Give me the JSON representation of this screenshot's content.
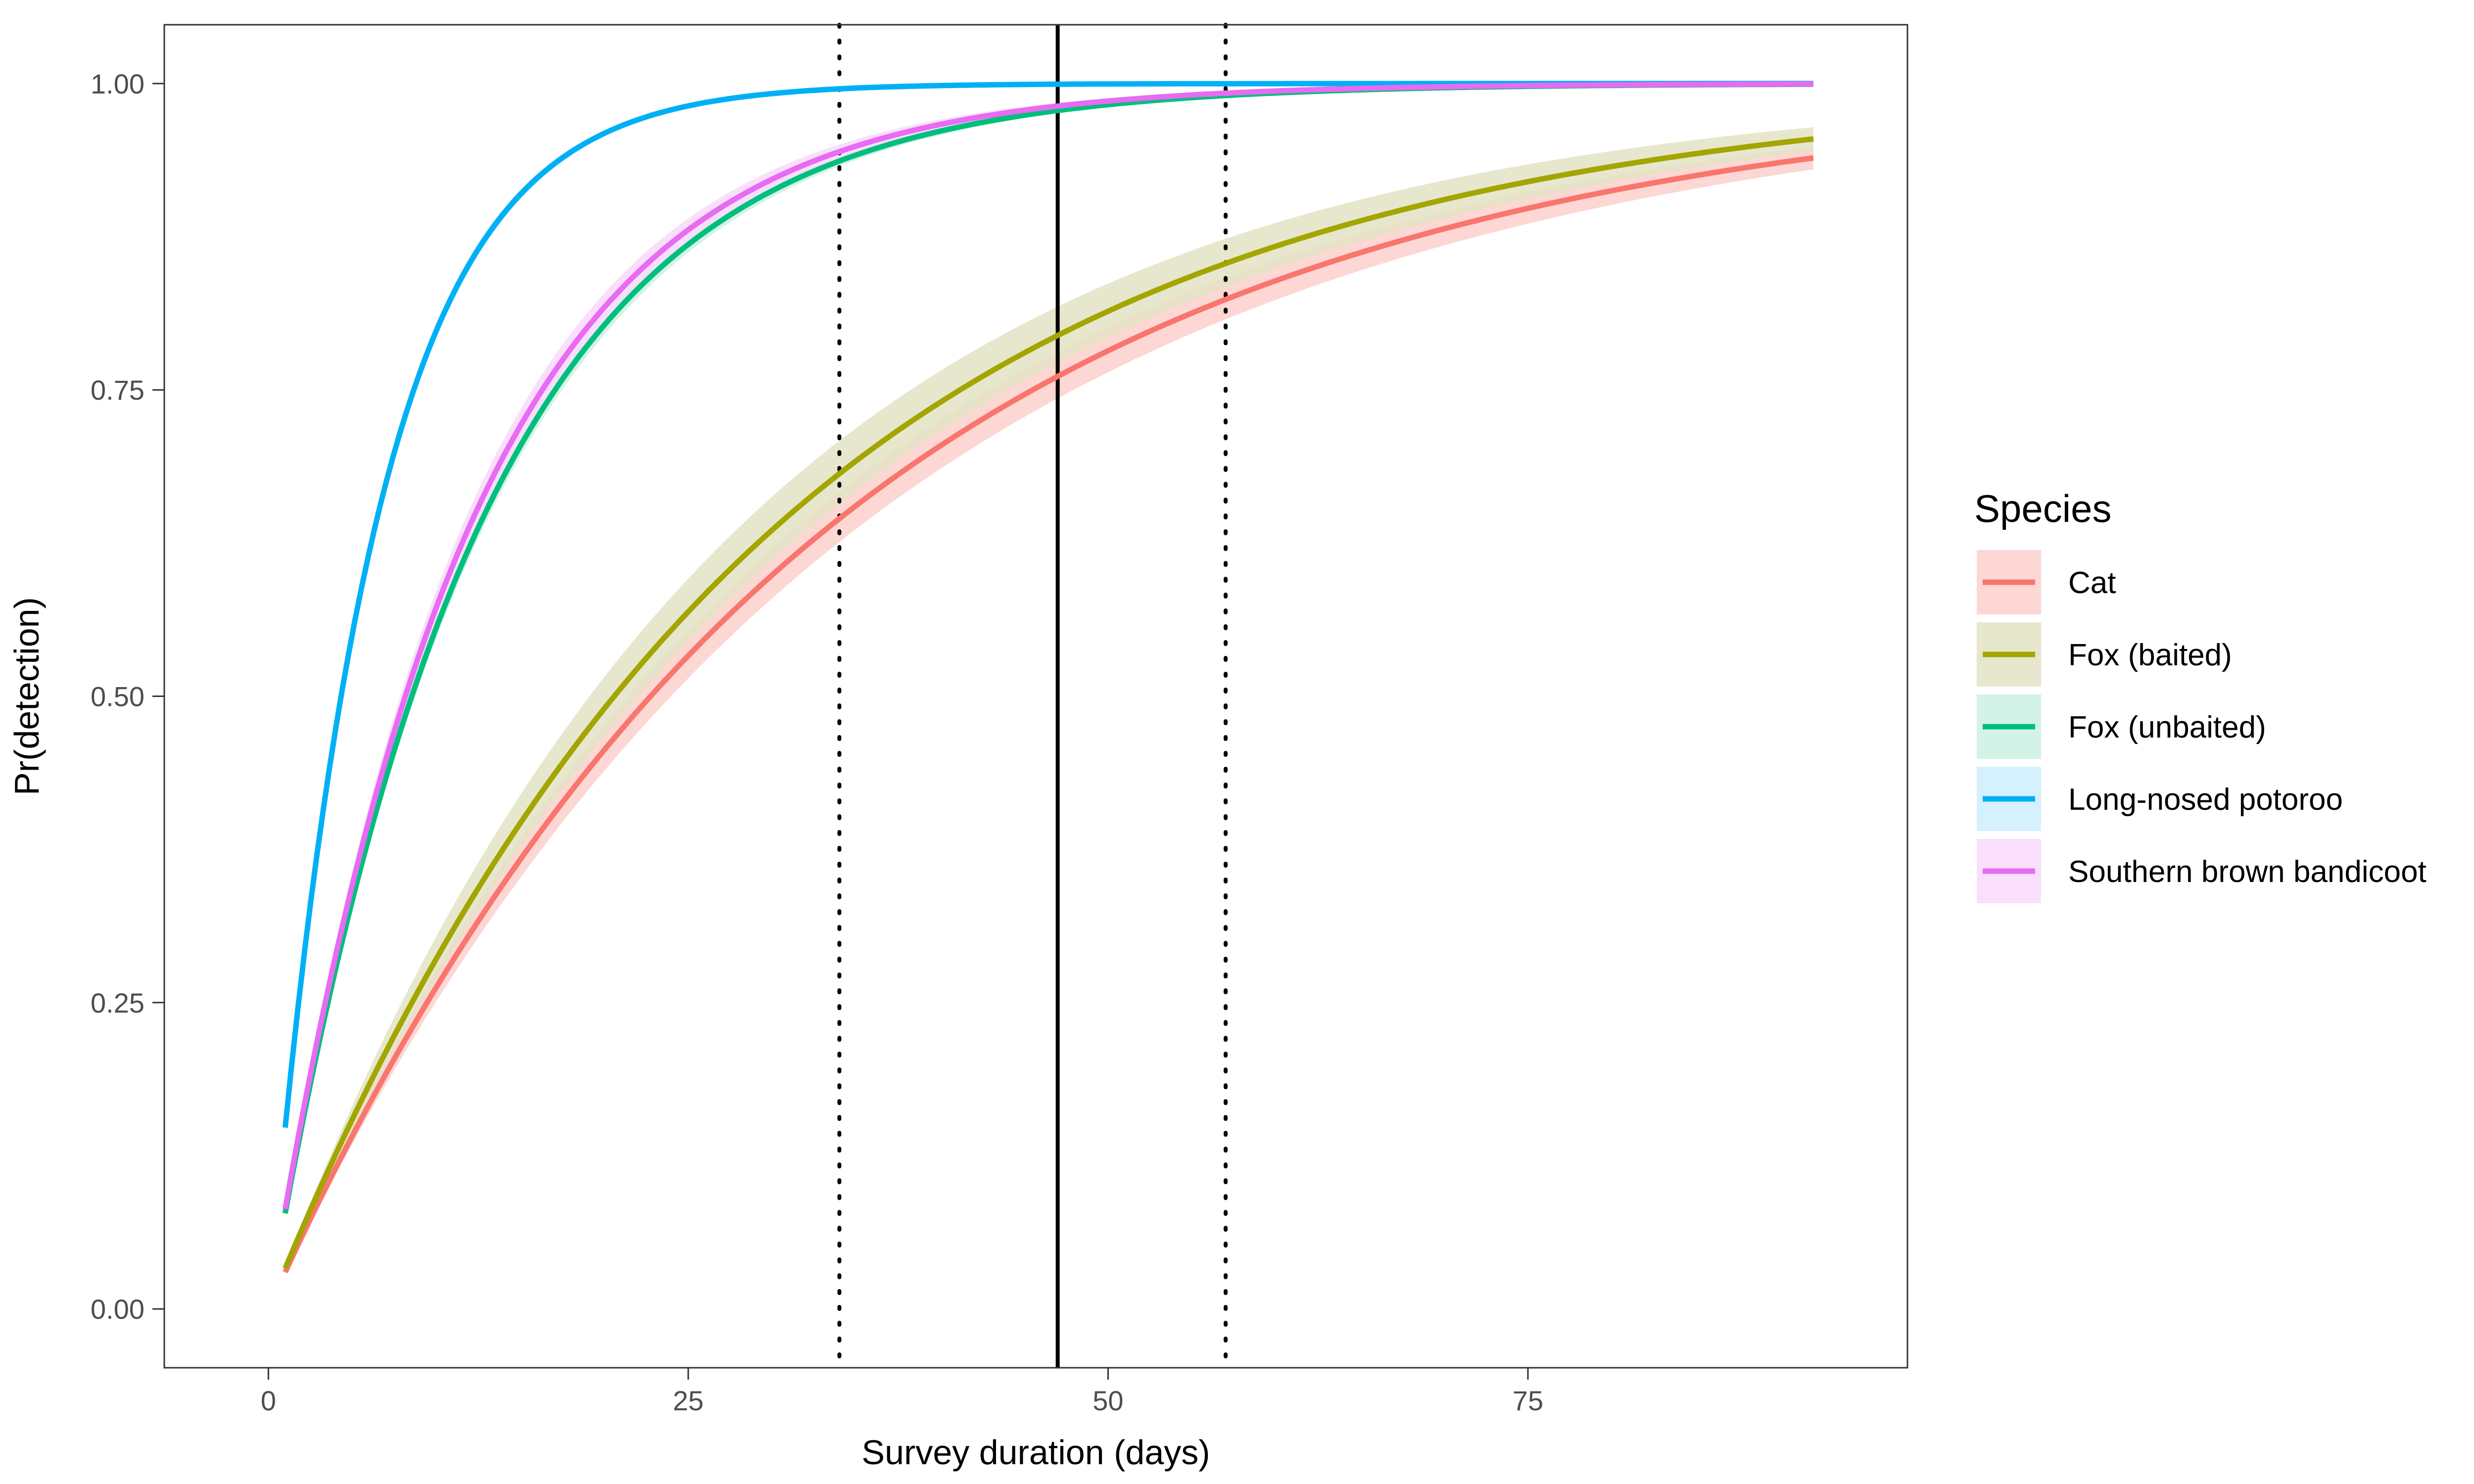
{
  "chart_data": {
    "type": "line",
    "xlabel": "Survey duration (days)",
    "ylabel": "Pr(detection)",
    "xlim": [
      -6.2,
      97.6
    ],
    "ylim": [
      -0.048,
      1.048
    ],
    "x_ticks": [
      0,
      25,
      50,
      75
    ],
    "x_tick_labels": [
      "0",
      "25",
      "50",
      "75"
    ],
    "y_ticks": [
      0,
      0.25,
      0.5,
      0.75,
      1
    ],
    "y_tick_labels": [
      "0.00",
      "0.25",
      "0.50",
      "0.75",
      "1.00"
    ],
    "grid": false,
    "legend": {
      "title": "Species",
      "position": "right"
    },
    "x_range": [
      1,
      92
    ],
    "reference_lines": [
      {
        "x": 47,
        "style": "solid"
      },
      {
        "x": 34,
        "style": "dotted"
      },
      {
        "x": 57,
        "style": "dotted"
      }
    ],
    "series": [
      {
        "name": "Cat",
        "color": "#F8766D",
        "fill": "#FBD0CD",
        "daily_p": 0.03,
        "p_low": 0.0285,
        "p_high": 0.0318,
        "points": {
          "x": [
            1,
            25,
            34,
            47,
            57,
            92
          ],
          "y": [
            0.03,
            0.53,
            0.646,
            0.76,
            0.823,
            0.94
          ]
        }
      },
      {
        "name": "Fox (baited)",
        "color": "#A3A500",
        "fill": "#E3E3C6",
        "daily_p": 0.0331,
        "p_low": 0.031,
        "p_high": 0.0356,
        "points": {
          "x": [
            1,
            25,
            34,
            47,
            57,
            92
          ],
          "y": [
            0.033,
            0.57,
            0.68,
            0.795,
            0.855,
            0.955
          ]
        }
      },
      {
        "name": "Fox (unbaited)",
        "color": "#00BF7D",
        "fill": "#CCF1E4",
        "daily_p": 0.078,
        "p_low": 0.0762,
        "p_high": 0.0798,
        "points": {
          "x": [
            1,
            10,
            20,
            34,
            47,
            92
          ],
          "y": [
            0.078,
            0.56,
            0.8,
            0.936,
            0.978,
            1.0
          ]
        }
      },
      {
        "name": "Long-nosed potoroo",
        "color": "#00B0F6",
        "fill": "#CCEFFD",
        "daily_p": 0.148,
        "p_low": 0.1455,
        "p_high": 0.1505,
        "points": {
          "x": [
            1,
            5,
            10,
            20,
            34,
            92
          ],
          "y": [
            0.148,
            0.55,
            0.8,
            0.96,
            0.995,
            1.0
          ]
        }
      },
      {
        "name": "Southern brown bandicoot",
        "color": "#E76BF3",
        "fill": "#F9D9FC",
        "daily_p": 0.0815,
        "p_low": 0.0785,
        "p_high": 0.0845,
        "points": {
          "x": [
            1,
            10,
            20,
            34,
            47,
            92
          ],
          "y": [
            0.081,
            0.57,
            0.816,
            0.944,
            0.982,
            1.0
          ]
        }
      }
    ]
  }
}
